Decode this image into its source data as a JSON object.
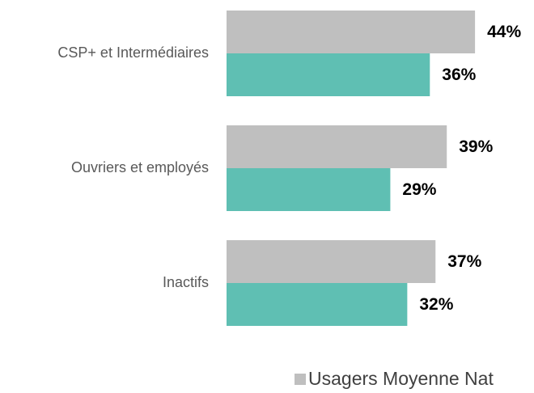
{
  "chart_data": {
    "type": "hbar",
    "categories": [
      "CSP+ et Intermédiaires",
      "Ouvriers et employés",
      "Inactifs"
    ],
    "series": [
      {
        "name": "Usagers Moyenne Nat",
        "color": "#bfbfbf",
        "values": [
          44,
          39,
          37
        ],
        "value_labels": [
          "44%",
          "39%",
          "37%"
        ]
      },
      {
        "color": "#5fbfb3",
        "values": [
          36,
          29,
          32
        ],
        "value_labels": [
          "36%",
          "29%",
          "32%"
        ]
      }
    ],
    "legend": "bottom-right"
  }
}
